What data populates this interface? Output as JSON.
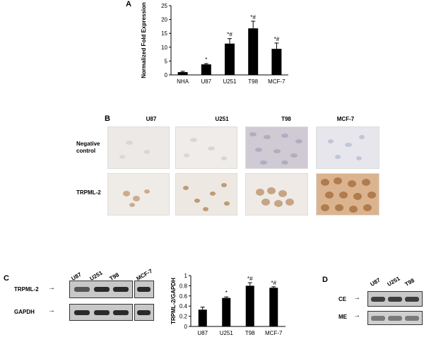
{
  "panels": {
    "A": "A",
    "B": "B",
    "C": "C",
    "D": "D"
  },
  "chart_data": [
    {
      "type": "bar",
      "panel": "A",
      "categories": [
        "NHA",
        "U87",
        "U251",
        "T98",
        "MCF-7"
      ],
      "values": [
        1,
        3.8,
        11.3,
        16.8,
        9.4
      ],
      "errors": [
        0.3,
        0.3,
        1.8,
        2.6,
        2.1
      ],
      "annotations": [
        "",
        "*",
        "*#",
        "*#",
        "*#"
      ],
      "ylabel": "Normalized Fold Expression",
      "ylim": [
        0,
        25
      ],
      "yticks": [
        0,
        5,
        10,
        15,
        20,
        25
      ],
      "color": "#000000"
    },
    {
      "type": "bar",
      "panel": "C",
      "categories": [
        "U87",
        "U251",
        "T98",
        "MCF-7"
      ],
      "values": [
        0.33,
        0.56,
        0.8,
        0.76
      ],
      "errors": [
        0.05,
        0.02,
        0.06,
        0.02
      ],
      "annotations": [
        "",
        "*",
        "*#",
        "*#"
      ],
      "ylabel": "TRPML-2/GAPDH",
      "ylim": [
        0,
        1
      ],
      "yticks": [
        "0",
        "0.2",
        "0.4",
        "0.6",
        "0.8",
        "1"
      ],
      "color": "#000000"
    }
  ],
  "panelB": {
    "columns": [
      "U87",
      "U251",
      "T98",
      "MCF-7"
    ],
    "rows": [
      "Negative control",
      "TRPML-2"
    ],
    "row_label_lines": [
      [
        "Negative",
        "control"
      ],
      [
        "TRPML-2"
      ]
    ]
  },
  "panelC": {
    "lanes_left": [
      "U87",
      "U251",
      "T98"
    ],
    "lane_right": "MCF-7",
    "rows": [
      "TRPML-2",
      "GAPDH"
    ]
  },
  "panelD": {
    "lanes": [
      "U87",
      "U251",
      "T98"
    ],
    "rows": [
      "CE",
      "ME"
    ]
  },
  "arrow": "→"
}
